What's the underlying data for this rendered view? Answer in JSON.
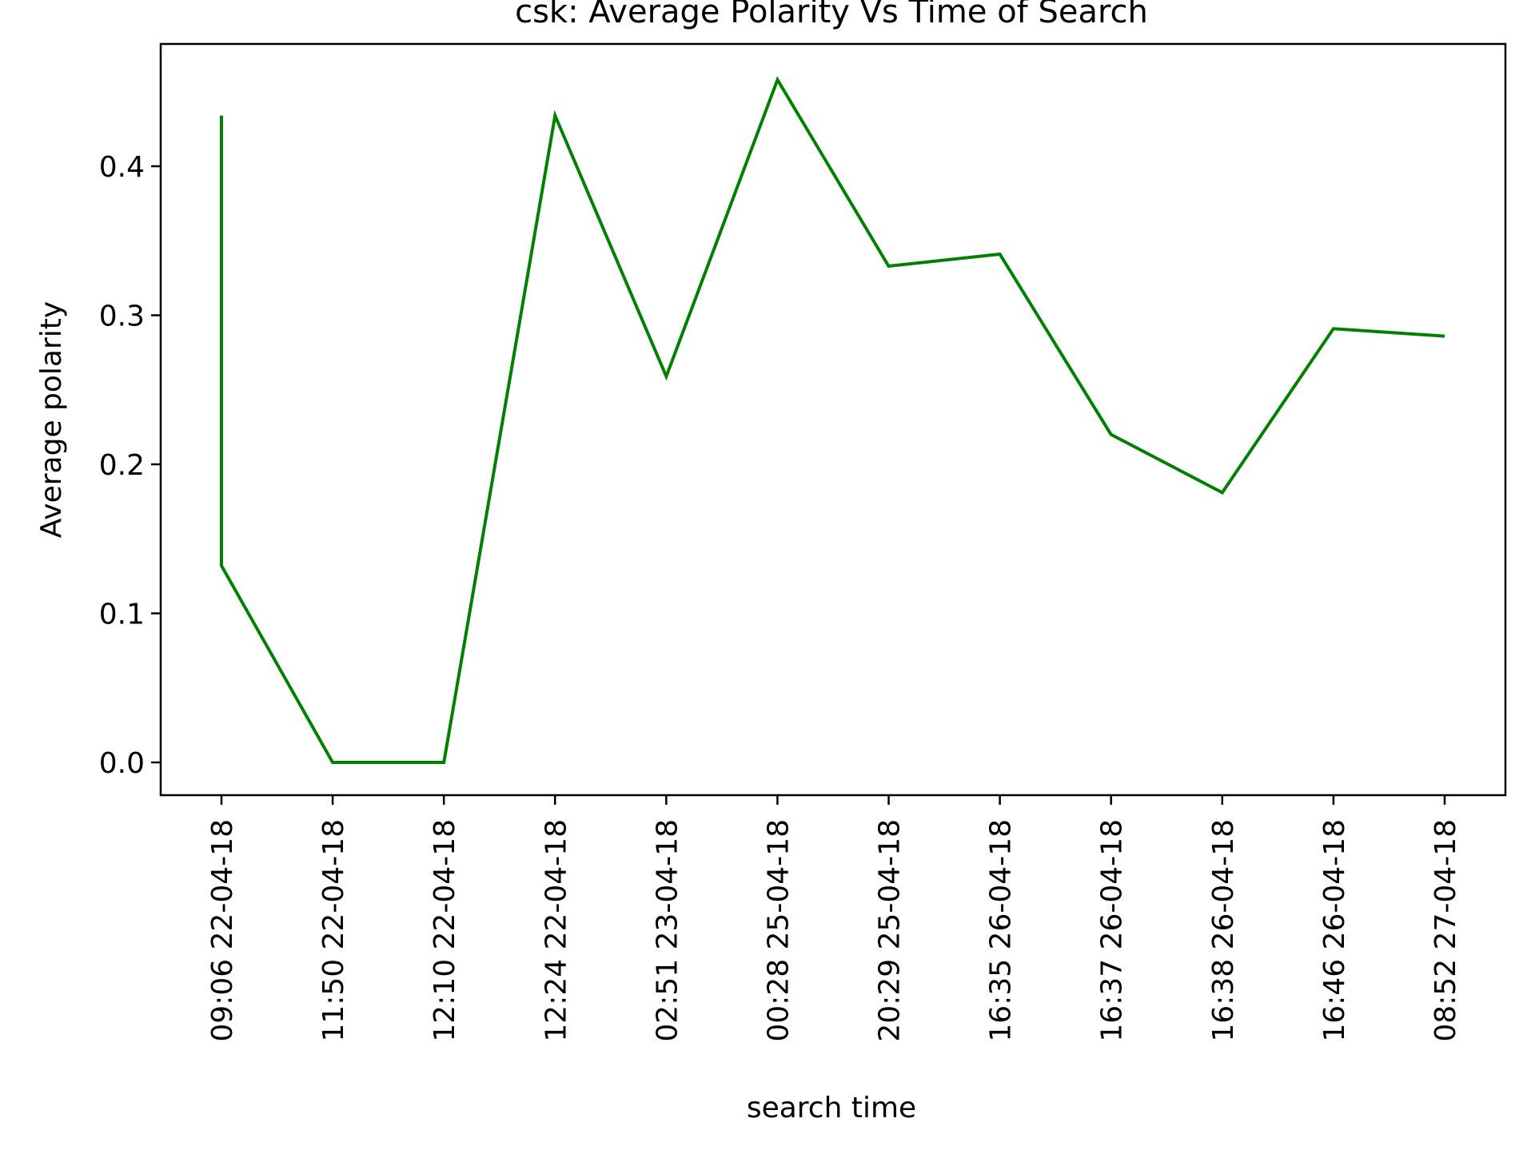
{
  "chart_data": {
    "type": "line",
    "title": "csk: Average Polarity Vs Time of Search",
    "xlabel": "search time",
    "ylabel": "Average polarity",
    "categories": [
      "09:06 22-04-18",
      "11:50 22-04-18",
      "12:10 22-04-18",
      "12:24 22-04-18",
      "02:51 23-04-18",
      "00:28 25-04-18",
      "20:29 25-04-18",
      "16:35 26-04-18",
      "16:37 26-04-18",
      "16:38 26-04-18",
      "16:46 26-04-18",
      "08:52 27-04-18"
    ],
    "points": [
      {
        "x": "09:06 22-04-18",
        "y": 0.434
      },
      {
        "x": "09:06 22-04-18",
        "y": 0.132
      },
      {
        "x": "11:50 22-04-18",
        "y": 0.0
      },
      {
        "x": "12:10 22-04-18",
        "y": 0.0
      },
      {
        "x": "12:24 22-04-18",
        "y": 0.434
      },
      {
        "x": "02:51 23-04-18",
        "y": 0.259
      },
      {
        "x": "00:28 25-04-18",
        "y": 0.458
      },
      {
        "x": "20:29 25-04-18",
        "y": 0.333
      },
      {
        "x": "16:35 26-04-18",
        "y": 0.341
      },
      {
        "x": "16:37 26-04-18",
        "y": 0.22
      },
      {
        "x": "16:38 26-04-18",
        "y": 0.181
      },
      {
        "x": "16:46 26-04-18",
        "y": 0.291
      },
      {
        "x": "08:52 27-04-18",
        "y": 0.286
      }
    ],
    "yticks": [
      "0.0",
      "0.1",
      "0.2",
      "0.3",
      "0.4"
    ],
    "ylim": [
      -0.022,
      0.482
    ],
    "line_color": "#008000",
    "grid": false,
    "legend": false
  }
}
